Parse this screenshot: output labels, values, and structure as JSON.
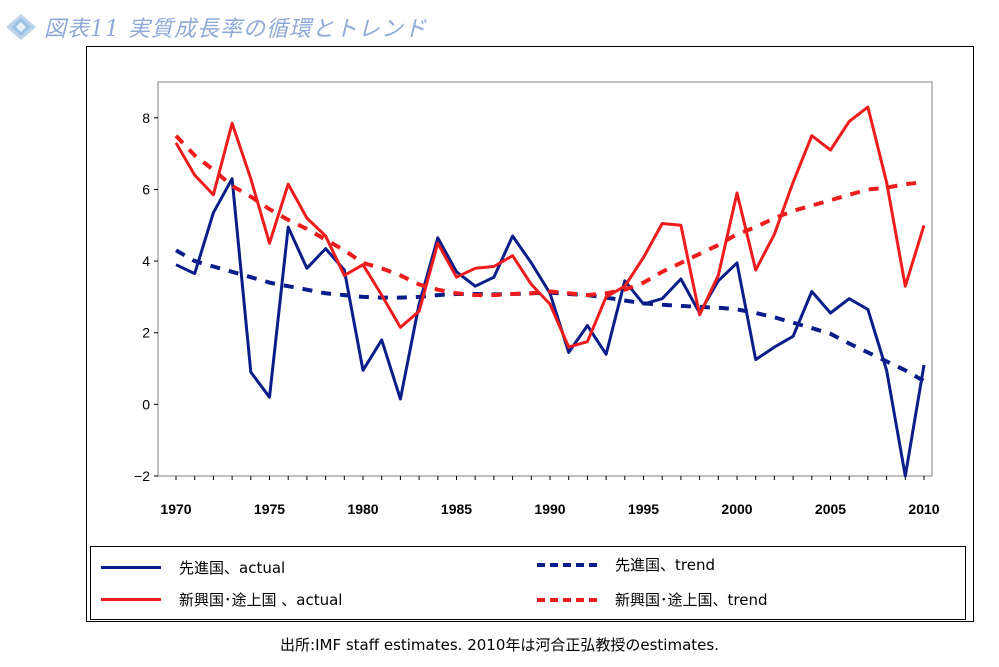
{
  "header": {
    "title": "図表11 実質成長率の循環とトレンド",
    "icon": "diamond-logo-icon"
  },
  "source_note": "出所:IMF staff estimates. 2010年は河合正弘教授のestimates.",
  "colors": {
    "navy": "#0a1e8a",
    "red": "#ee1c1c",
    "title": "#8fa9d8"
  },
  "chart_data": {
    "type": "line",
    "title": "",
    "xlabel": "",
    "ylabel": "",
    "xlim": [
      1970,
      2010
    ],
    "ylim": [
      -2,
      9
    ],
    "yticks": [
      -2,
      0,
      2,
      4,
      6,
      8
    ],
    "xticks": [
      1970,
      1975,
      1980,
      1985,
      1990,
      1995,
      2000,
      2005,
      2010
    ],
    "grid": "horizontal",
    "legend_position": "bottom",
    "x": [
      1970,
      1971,
      1972,
      1973,
      1974,
      1975,
      1976,
      1977,
      1978,
      1979,
      1980,
      1981,
      1982,
      1983,
      1984,
      1985,
      1986,
      1987,
      1988,
      1989,
      1990,
      1991,
      1992,
      1993,
      1994,
      1995,
      1996,
      1997,
      1998,
      1999,
      2000,
      2001,
      2002,
      2003,
      2004,
      2005,
      2006,
      2007,
      2008,
      2009,
      2010
    ],
    "series": [
      {
        "name": "先進国、actual",
        "style": "solid",
        "color": "#0a1e8a",
        "values": [
          3.9,
          3.65,
          5.35,
          6.3,
          0.9,
          0.2,
          4.95,
          3.8,
          4.35,
          3.75,
          0.95,
          1.8,
          0.15,
          2.8,
          4.65,
          3.7,
          3.3,
          3.55,
          4.7,
          3.95,
          3.1,
          1.45,
          2.2,
          1.4,
          3.45,
          2.8,
          2.95,
          3.5,
          2.55,
          3.45,
          3.95,
          1.25,
          1.6,
          1.9,
          3.15,
          2.55,
          2.95,
          2.65,
          0.95,
          -2.0,
          1.1
        ]
      },
      {
        "name": "先進国、trend",
        "style": "dashed",
        "color": "#0a1e8a",
        "values": [
          4.3,
          4.0,
          3.85,
          3.7,
          3.55,
          3.4,
          3.3,
          3.2,
          3.1,
          3.05,
          3.0,
          2.98,
          2.98,
          3.0,
          3.05,
          3.08,
          3.08,
          3.07,
          3.08,
          3.1,
          3.12,
          3.08,
          3.05,
          2.98,
          2.9,
          2.82,
          2.78,
          2.75,
          2.72,
          2.7,
          2.65,
          2.55,
          2.43,
          2.28,
          2.13,
          1.97,
          1.7,
          1.45,
          1.2,
          0.95,
          0.65
        ]
      },
      {
        "name": "新興国･途上国 、actual",
        "style": "solid",
        "color": "#ee1c1c",
        "values": [
          7.3,
          6.4,
          5.85,
          7.85,
          6.3,
          4.5,
          6.15,
          5.2,
          4.7,
          3.6,
          3.9,
          3.05,
          2.15,
          2.6,
          4.5,
          3.55,
          3.8,
          3.85,
          4.15,
          3.35,
          2.8,
          1.6,
          1.75,
          3.0,
          3.3,
          4.1,
          5.05,
          5.0,
          2.5,
          3.6,
          5.9,
          3.75,
          4.75,
          6.2,
          7.5,
          7.1,
          7.9,
          8.3,
          6.2,
          3.3,
          5.0
        ]
      },
      {
        "name": "新興国･途上国、trend",
        "style": "dashed",
        "color": "#ee1c1c",
        "values": [
          7.5,
          6.95,
          6.55,
          6.1,
          5.8,
          5.45,
          5.15,
          4.9,
          4.6,
          4.3,
          3.95,
          3.8,
          3.6,
          3.35,
          3.2,
          3.1,
          3.05,
          3.05,
          3.08,
          3.1,
          3.15,
          3.1,
          3.05,
          3.1,
          3.2,
          3.4,
          3.7,
          3.95,
          4.2,
          4.45,
          4.75,
          4.95,
          5.2,
          5.4,
          5.55,
          5.7,
          5.85,
          6.0,
          6.05,
          6.15,
          6.2
        ]
      }
    ]
  }
}
